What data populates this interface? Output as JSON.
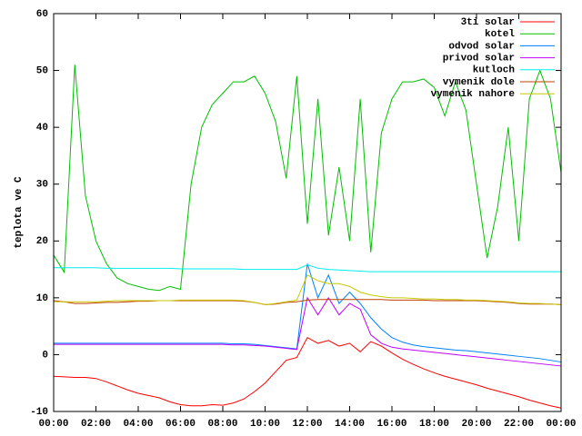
{
  "chart_data": {
    "type": "line",
    "ylabel": "teplota ve C",
    "x": [
      0,
      0.5,
      1,
      1.5,
      2,
      2.5,
      3,
      3.5,
      4,
      4.5,
      5,
      5.5,
      6,
      6.5,
      7,
      7.5,
      8,
      8.5,
      9,
      9.5,
      10,
      10.5,
      11,
      11.5,
      12,
      12.5,
      13,
      13.5,
      14,
      14.5,
      15,
      15.5,
      16,
      16.5,
      17,
      17.5,
      18,
      18.5,
      19,
      19.5,
      20,
      20.5,
      21,
      21.5,
      22,
      22.5,
      23,
      23.5,
      24
    ],
    "xlim": [
      0,
      24
    ],
    "xticks": [
      {
        "value": 0,
        "label": "00:00"
      },
      {
        "value": 2,
        "label": "02:00"
      },
      {
        "value": 4,
        "label": "04:00"
      },
      {
        "value": 6,
        "label": "06:00"
      },
      {
        "value": 8,
        "label": "08:00"
      },
      {
        "value": 10,
        "label": "10:00"
      },
      {
        "value": 12,
        "label": "12:00"
      },
      {
        "value": 14,
        "label": "14:00"
      },
      {
        "value": 16,
        "label": "16:00"
      },
      {
        "value": 18,
        "label": "18:00"
      },
      {
        "value": 20,
        "label": "20:00"
      },
      {
        "value": 22,
        "label": "22:00"
      },
      {
        "value": 24,
        "label": "00:00"
      }
    ],
    "ylim": [
      -10,
      60
    ],
    "yticks": [
      -10,
      0,
      10,
      20,
      30,
      40,
      50,
      60
    ],
    "grid": false,
    "legend": "top-right",
    "series": [
      {
        "name": "3ti solar",
        "color": "#ff0000",
        "values": [
          -3.8,
          -3.9,
          -4,
          -4,
          -4.2,
          -4.8,
          -5.5,
          -6.2,
          -6.8,
          -7.2,
          -7.6,
          -8.3,
          -8.8,
          -9,
          -9,
          -8.8,
          -8.9,
          -8.5,
          -7.8,
          -6.5,
          -5,
          -3,
          -1,
          -0.5,
          3,
          2,
          2.5,
          1.5,
          2,
          0.5,
          2.3,
          1.5,
          0.3,
          -0.8,
          -1.7,
          -2.5,
          -3.2,
          -3.8,
          -4.3,
          -4.8,
          -5.3,
          -5.9,
          -6.4,
          -6.9,
          -7.4,
          -8,
          -8.5,
          -9,
          -9.4
        ]
      },
      {
        "name": "kotel",
        "color": "#00c000",
        "values": [
          17.5,
          14.5,
          51,
          28,
          20,
          16,
          13.5,
          12.5,
          12,
          11.5,
          11.3,
          12,
          11.5,
          30,
          40,
          44,
          46,
          48,
          48,
          49,
          46,
          41,
          31,
          49,
          23,
          45,
          21,
          33,
          20,
          45,
          18,
          39,
          45,
          48,
          48,
          48.5,
          47,
          42,
          48,
          43,
          30,
          17,
          26,
          40,
          20,
          45,
          50,
          45,
          32
        ]
      },
      {
        "name": "odvod solar",
        "color": "#0080ff",
        "values": [
          2,
          2,
          2,
          2,
          2,
          2,
          2,
          2,
          2,
          2,
          2,
          2,
          2,
          2,
          2,
          2,
          2,
          1.9,
          1.9,
          1.8,
          1.6,
          1.4,
          1.2,
          1,
          16,
          10,
          14,
          9,
          11,
          9,
          6.5,
          4.5,
          3,
          2.2,
          1.7,
          1.4,
          1.2,
          1,
          0.8,
          0.7,
          0.5,
          0.3,
          0.1,
          -0.1,
          -0.3,
          -0.5,
          -0.7,
          -1,
          -1.3
        ]
      },
      {
        "name": "privod solar",
        "color": "#c000ff",
        "values": [
          1.8,
          1.8,
          1.8,
          1.8,
          1.8,
          1.8,
          1.8,
          1.8,
          1.8,
          1.8,
          1.8,
          1.8,
          1.8,
          1.8,
          1.8,
          1.8,
          1.8,
          1.7,
          1.7,
          1.6,
          1.5,
          1.3,
          1.1,
          0.9,
          10,
          7,
          10,
          7,
          9,
          8,
          3.5,
          2,
          1.3,
          1,
          0.8,
          0.6,
          0.4,
          0.2,
          0,
          -0.2,
          -0.4,
          -0.6,
          -0.8,
          -1,
          -1.2,
          -1.4,
          -1.6,
          -1.8,
          -2
        ]
      },
      {
        "name": "kutloch",
        "color": "#00eeee",
        "values": [
          15.3,
          15.3,
          15.3,
          15.3,
          15.3,
          15.2,
          15.2,
          15.2,
          15.2,
          15.2,
          15.2,
          15.2,
          15.1,
          15.1,
          15.1,
          15.1,
          15.1,
          15.1,
          15,
          15,
          15,
          15,
          15,
          15,
          15.8,
          15.2,
          15,
          14.9,
          14.8,
          14.7,
          14.6,
          14.6,
          14.6,
          14.6,
          14.6,
          14.6,
          14.6,
          14.6,
          14.6,
          14.6,
          14.6,
          14.6,
          14.6,
          14.6,
          14.6,
          14.6,
          14.6,
          14.6,
          14.6
        ]
      },
      {
        "name": "vymenik dole",
        "color": "#c04000",
        "values": [
          9.5,
          9.3,
          9,
          9,
          9.1,
          9.2,
          9.2,
          9.3,
          9.4,
          9.4,
          9.5,
          9.5,
          9.5,
          9.5,
          9.5,
          9.5,
          9.5,
          9.5,
          9.4,
          9.2,
          8.8,
          8.9,
          9.2,
          9.3,
          9.6,
          9.7,
          9.7,
          9.7,
          9.7,
          9.7,
          9.7,
          9.7,
          9.6,
          9.6,
          9.6,
          9.6,
          9.5,
          9.5,
          9.5,
          9.5,
          9.5,
          9.4,
          9.3,
          9.2,
          9,
          8.9,
          8.9,
          8.9,
          8.8
        ]
      },
      {
        "name": "vymenik nahore",
        "color": "#c8c800",
        "values": [
          9.3,
          9.3,
          9.3,
          9.3,
          9.3,
          9.4,
          9.5,
          9.5,
          9.5,
          9.5,
          9.5,
          9.5,
          9.6,
          9.6,
          9.6,
          9.6,
          9.6,
          9.6,
          9.5,
          9.2,
          8.8,
          9,
          9.3,
          9.6,
          14,
          13,
          12.5,
          12.5,
          12,
          11,
          10.5,
          10.2,
          10,
          10,
          9.9,
          9.8,
          9.8,
          9.7,
          9.7,
          9.6,
          9.6,
          9.5,
          9.4,
          9.3,
          9.1,
          9,
          9,
          8.9,
          8.8
        ]
      }
    ]
  }
}
